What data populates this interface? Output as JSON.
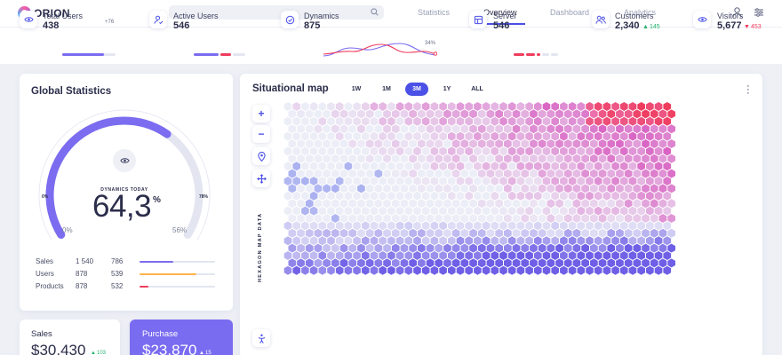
{
  "app": {
    "name": "ORION"
  },
  "search": {
    "placeholder": ""
  },
  "nav": [
    {
      "label": "Statistics"
    },
    {
      "label": "Overview"
    },
    {
      "label": "Dashboard"
    },
    {
      "label": "Analytics"
    }
  ],
  "stats": {
    "total_users": {
      "label": "Total Users",
      "value": "438",
      "delta": "+76",
      "progress": 0.78
    },
    "active_users": {
      "label": "Active Users",
      "value": "546"
    },
    "dynamics": {
      "label": "Dynamics",
      "value": "875",
      "percent": "34%"
    },
    "server": {
      "label": "Server",
      "value": "546"
    },
    "customers": {
      "label": "Customers",
      "value": "2,340",
      "change": "145"
    },
    "visitors": {
      "label": "Visitors",
      "value": "5,677",
      "change": "453"
    }
  },
  "global_statistics": {
    "title": "Global Statistics",
    "gauge_label": "DYNAMICS TODAY",
    "value": "64,3",
    "unit": "%",
    "tick_left": "0%",
    "tick_right": "78%",
    "scale_min": "0%",
    "scale_max": "56%",
    "fill_fraction": 0.643,
    "rows": [
      {
        "label": "Sales",
        "v1": "1 540",
        "v2": "786",
        "fill": 0.45,
        "color": "#7b6cf0"
      },
      {
        "label": "Users",
        "v1": "878",
        "v2": "539",
        "fill": 0.75,
        "color": "#ffb24a"
      },
      {
        "label": "Products",
        "v1": "878",
        "v2": "532",
        "fill": 0.12,
        "color": "#ef3c5d"
      }
    ]
  },
  "sales_card": {
    "label": "Sales",
    "value": "$30,430",
    "change": "103"
  },
  "purchase_card": {
    "label": "Purchase",
    "value": "$23,870",
    "change": "15"
  },
  "map": {
    "title": "Situational map",
    "ranges": [
      "1W",
      "1M",
      "3M",
      "1Y",
      "ALL"
    ],
    "active_range": "3M",
    "vertical_label": "HEXAGON MAP DATA"
  },
  "colors": {
    "accent": "#4b50e6",
    "purple": "#7a6cf0",
    "pink": "#e06fc4",
    "red": "#ef3c5d",
    "green": "#23b26d"
  }
}
